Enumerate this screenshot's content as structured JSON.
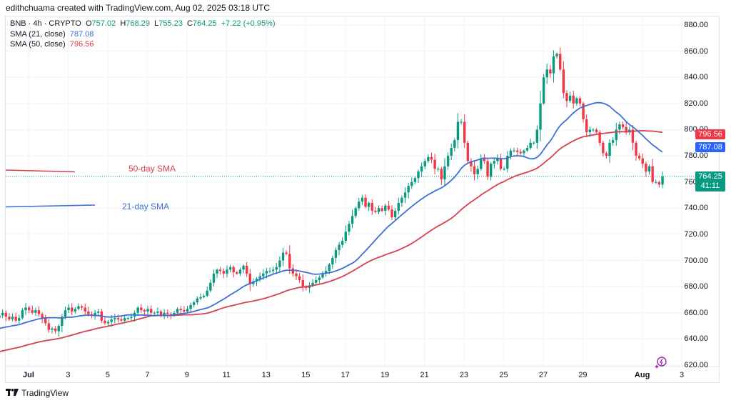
{
  "header": {
    "attribution": "edithchuama created with TradingView.com, Aug 02, 2025 03:18 UTC"
  },
  "legend": {
    "symbol": "BNB · 4h · CRYPTO",
    "open_label": "O",
    "open": "757.02",
    "high_label": "H",
    "high": "768.29",
    "low_label": "L",
    "low": "755.23",
    "close_label": "C",
    "close": "764.25",
    "change": "+7.22 (+0.95%)",
    "sma21_label": "SMA (21, close)",
    "sma21_value": "787.08",
    "sma50_label": "SMA (50, close)",
    "sma50_value": "796.56"
  },
  "tags": {
    "sma50": "796.56",
    "sma21": "787.08",
    "last_price": "764.25",
    "countdown": "41:11"
  },
  "annotations": {
    "sma50_label": "50-day SMA",
    "sma21_label": "21-day SMA"
  },
  "footer": {
    "logo_text": "TradingView",
    "logo_mark": "TV"
  },
  "colors": {
    "up": "#089981",
    "down": "#f23645",
    "sma21": "#3d6fd6",
    "sma50": "#d9404f",
    "grid": "#f0f3fa",
    "last_price_line": "#089981"
  },
  "icons": {
    "ai_assist": "lightning-sparkle-icon"
  },
  "chart_data": {
    "type": "candlestick",
    "title": "BNB · 4h · CRYPTO",
    "interval_hours": 4,
    "start": "Jun 30 00:00",
    "ylim": [
      620,
      880
    ],
    "y_ticks": [
      "880.00",
      "860.00",
      "840.00",
      "820.00",
      "800.00",
      "780.00",
      "760.00",
      "740.00",
      "720.00",
      "700.00",
      "680.00",
      "660.00",
      "640.00",
      "620.00"
    ],
    "x_ticks": [
      {
        "label": "Jul",
        "day": 1,
        "bold": true
      },
      {
        "label": "3",
        "day": 3
      },
      {
        "label": "5",
        "day": 5
      },
      {
        "label": "7",
        "day": 7
      },
      {
        "label": "9",
        "day": 9
      },
      {
        "label": "11",
        "day": 11
      },
      {
        "label": "13",
        "day": 13
      },
      {
        "label": "15",
        "day": 15
      },
      {
        "label": "17",
        "day": 17
      },
      {
        "label": "19",
        "day": 19
      },
      {
        "label": "21",
        "day": 21
      },
      {
        "label": "23",
        "day": 23
      },
      {
        "label": "25",
        "day": 25
      },
      {
        "label": "27",
        "day": 27
      },
      {
        "label": "29",
        "day": 29
      },
      {
        "label": "Aug",
        "day": 32,
        "bold": true
      },
      {
        "label": "3",
        "day": 34
      }
    ],
    "last_price": 764.25,
    "closes": [
      654,
      657,
      656,
      658,
      660,
      657,
      655,
      657,
      654,
      656,
      662,
      664,
      662,
      660,
      662,
      659,
      656,
      652,
      647,
      648,
      646,
      650,
      657,
      662,
      664,
      661,
      663,
      665,
      664,
      661,
      659,
      658,
      660,
      661,
      654,
      652,
      653,
      655,
      656,
      655,
      654,
      656,
      656,
      657,
      660,
      664,
      662,
      661,
      663,
      660,
      660,
      661,
      658,
      660,
      659,
      658,
      660,
      663,
      662,
      661,
      663,
      666,
      668,
      671,
      672,
      673,
      677,
      683,
      690,
      693,
      692,
      690,
      693,
      695,
      691,
      690,
      693,
      696,
      690,
      682,
      684,
      686,
      688,
      690,
      692,
      692,
      693,
      695,
      700,
      706,
      705,
      694,
      690,
      688,
      685,
      680,
      679,
      681,
      683,
      685,
      687,
      690,
      692,
      697,
      702,
      708,
      712,
      715,
      722,
      728,
      734,
      740,
      745,
      748,
      741,
      744,
      738,
      737,
      740,
      738,
      742,
      739,
      733,
      738,
      744,
      748,
      752,
      757,
      760,
      763,
      768,
      772,
      776,
      779,
      777,
      770,
      770,
      762,
      772,
      780,
      786,
      792,
      806,
      806,
      790,
      776,
      772,
      766,
      770,
      778,
      776,
      764,
      774,
      776,
      778,
      770,
      770,
      780,
      784,
      784,
      783,
      782,
      784,
      786,
      790,
      790,
      800,
      820,
      840,
      846,
      843,
      856,
      858,
      846,
      828,
      822,
      826,
      820,
      824,
      820,
      808,
      798,
      800,
      800,
      798,
      790,
      782,
      780,
      790,
      792,
      800,
      804,
      802,
      798,
      800,
      790,
      780,
      778,
      774,
      768,
      772,
      760,
      760,
      758,
      764
    ],
    "sma21_points": "computed from closes",
    "sma50_points": "computed from closes"
  }
}
